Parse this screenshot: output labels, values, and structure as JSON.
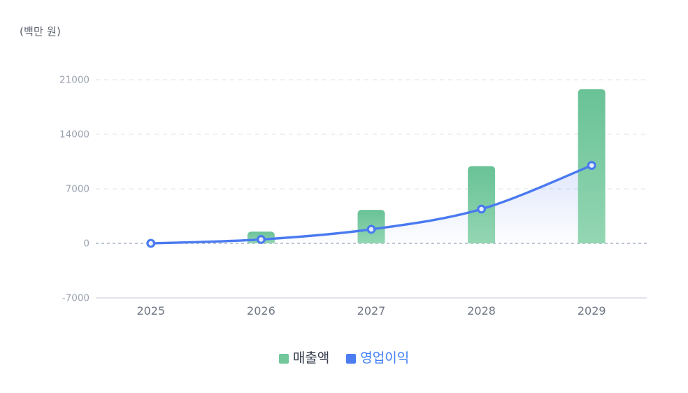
{
  "chart_data": {
    "type": "combo",
    "unit_label": "(백만 원)",
    "categories": [
      "2025",
      "2026",
      "2027",
      "2028",
      "2029"
    ],
    "series": [
      {
        "name": "매출액",
        "type": "bar",
        "values": [
          0,
          1500,
          4300,
          9900,
          19800
        ],
        "color_top": "#69c296",
        "color_bottom": "#93d6b3",
        "legend_swatch": "#72c79b",
        "legend_text_color": "#343b49"
      },
      {
        "name": "영업이익",
        "type": "line",
        "values": [
          0,
          500,
          1800,
          4400,
          10000
        ],
        "color": "#4a7af0",
        "marker_fill": "#ffffff",
        "area_fill": "#587cee",
        "legend_swatch": "#4b7cf2",
        "legend_text_color": "#3f7ef7"
      }
    ],
    "y_axis": {
      "ticks": [
        21000,
        14000,
        7000,
        0,
        -7000
      ],
      "range": [
        -7000,
        21000
      ],
      "tick_color": "#9aa1ae"
    },
    "x_axis": {
      "label_color": "#6f7683"
    },
    "grid": {
      "gridline_color": "#e3e6ec",
      "zero_line_color": "#97a5ba",
      "axis_line_color": "#d8dce2"
    },
    "legend_position": "bottom-center"
  }
}
